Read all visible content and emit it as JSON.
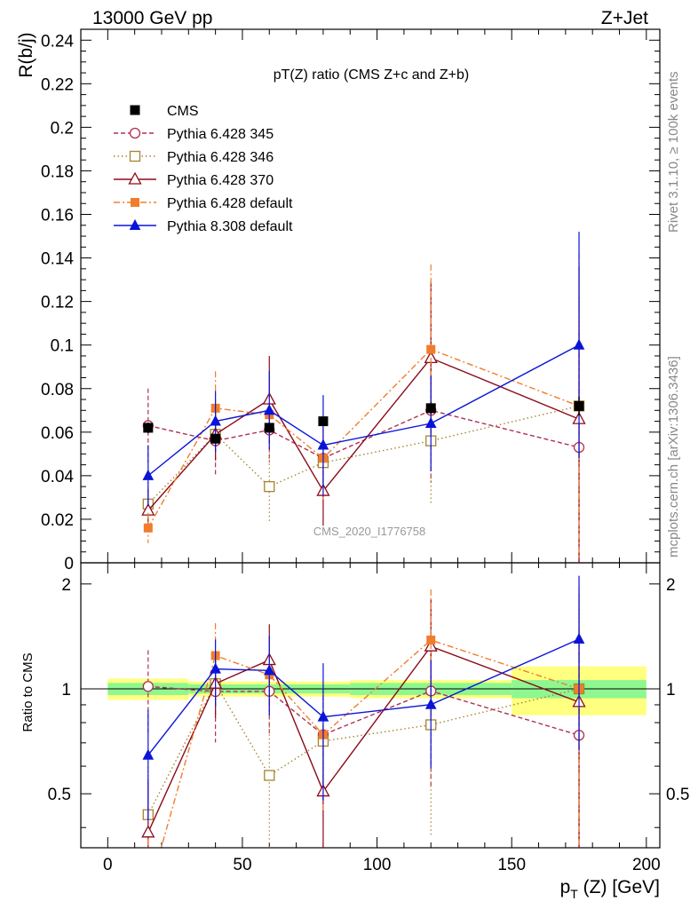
{
  "header": {
    "left": "13000 GeV pp",
    "right": "Z+Jet"
  },
  "side_labels": {
    "rivet": "Rivet 3.1.10, ≥ 100k events",
    "mcplots": "mcplots.cern.ch [arXiv:1306.3436]"
  },
  "chart_data": {
    "type": "line",
    "title": "pT(Z) ratio (CMS  Z+c and Z+b)",
    "analysis_label": "CMS_2020_I1776758",
    "ylabel": "R(b/j)",
    "ratio_ylabel": "Ratio to CMS",
    "xlabel": "p_T (Z) [GeV]",
    "xlim": [
      -10,
      205
    ],
    "ylim": [
      0,
      0.245
    ],
    "ratio_ylim": [
      0.35,
      2.3
    ],
    "x_ticks": [
      0,
      50,
      100,
      150,
      200
    ],
    "y_ticks": [
      0,
      0.02,
      0.04,
      0.06,
      0.08,
      0.1,
      0.12,
      0.14,
      0.16,
      0.18,
      0.2,
      0.22,
      0.24
    ],
    "ratio_ticks": [
      0.5,
      1,
      2
    ],
    "x": [
      15,
      40,
      60,
      80,
      120,
      175
    ],
    "data": {
      "name": "CMS",
      "values": [
        0.062,
        0.057,
        0.062,
        0.065,
        0.071,
        0.072
      ],
      "bins": [
        [
          0,
          30
        ],
        [
          30,
          50
        ],
        [
          50,
          70
        ],
        [
          70,
          90
        ],
        [
          90,
          150
        ],
        [
          150,
          200
        ]
      ],
      "stat_band": [
        0.04,
        0.03,
        0.03,
        0.03,
        0.04,
        0.06
      ],
      "total_band": [
        0.07,
        0.05,
        0.05,
        0.05,
        0.06,
        0.16
      ]
    },
    "series": [
      {
        "name": "Pythia 6.428 345",
        "color": "#b03050",
        "dash": "5,3",
        "marker": "circle-open",
        "values": [
          0.063,
          0.056,
          0.061,
          0.048,
          0.07,
          0.053
        ],
        "err": [
          0.017,
          0.016,
          0.015,
          0.017,
          0.033,
          0.053
        ]
      },
      {
        "name": "Pythia 6.428 346",
        "color": "#a6842f",
        "dash": "1.5,3",
        "marker": "square-open",
        "values": [
          0.027,
          0.059,
          0.035,
          0.046,
          0.056,
          0.072
        ],
        "err": [
          0.01,
          0.013,
          0.016,
          0.018,
          0.029,
          0.05
        ]
      },
      {
        "name": "Pythia 6.428 370",
        "color": "#8b0a1a",
        "dash": "",
        "marker": "triangle-open",
        "values": [
          0.024,
          0.059,
          0.075,
          0.033,
          0.094,
          0.066
        ],
        "err": [
          0.01,
          0.012,
          0.02,
          0.016,
          0.035,
          0.07
        ]
      },
      {
        "name": "Pythia 6.428 default",
        "color": "#f07d2c",
        "dash": "7,3,2,3",
        "marker": "square-filled",
        "values": [
          0.016,
          0.071,
          0.068,
          0.048,
          0.098,
          0.072
        ],
        "err": [
          0.007,
          0.017,
          0.016,
          0.019,
          0.039,
          0.07
        ]
      },
      {
        "name": "Pythia 8.308 default",
        "color": "#0a14d8",
        "dash": "",
        "marker": "triangle-filled",
        "values": [
          0.04,
          0.065,
          0.07,
          0.054,
          0.064,
          0.1
        ],
        "err": [
          0.014,
          0.014,
          0.018,
          0.023,
          0.022,
          0.052
        ]
      }
    ],
    "legend_position": "top-left"
  }
}
